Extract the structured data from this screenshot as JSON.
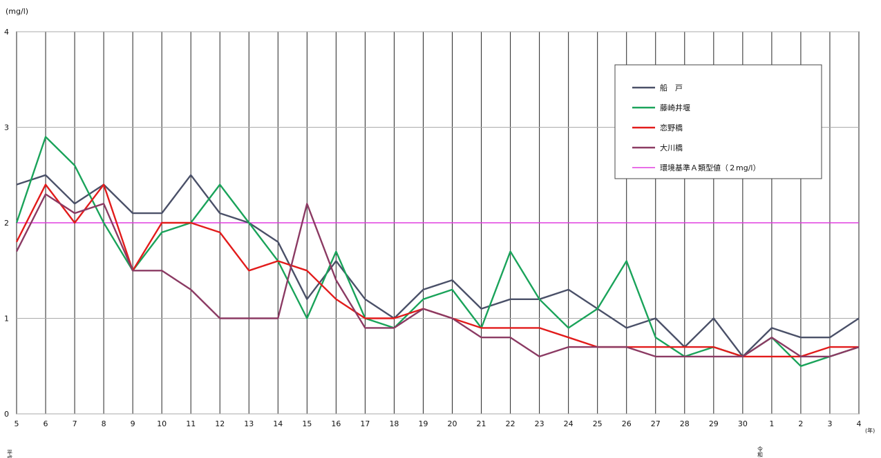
{
  "chart_data": {
    "type": "line",
    "ylabel": "(mg/l)",
    "xlabel": "(年)",
    "ylim": [
      0,
      4
    ],
    "yticks": [
      "0",
      "1",
      "2",
      "3",
      "4"
    ],
    "categories": [
      "5",
      "6",
      "7",
      "8",
      "9",
      "10",
      "11",
      "12",
      "13",
      "14",
      "15",
      "16",
      "17",
      "18",
      "19",
      "20",
      "21",
      "22",
      "23",
      "24",
      "25",
      "26",
      "27",
      "28",
      "29",
      "30",
      "1",
      "2",
      "3",
      "4"
    ],
    "era_labels": {
      "heisei": "平成",
      "reiwa": "令和"
    },
    "grid": true,
    "legend_position": "top-right",
    "series": [
      {
        "name": "船　戸",
        "color": "#4a5068",
        "values": [
          2.4,
          2.5,
          2.2,
          2.4,
          2.1,
          2.1,
          2.5,
          2.1,
          2.0,
          1.8,
          1.2,
          1.6,
          1.2,
          1.0,
          1.3,
          1.4,
          1.1,
          1.2,
          1.2,
          1.3,
          1.1,
          0.9,
          1.0,
          0.7,
          1.0,
          0.6,
          0.9,
          0.8,
          0.8,
          1.0
        ]
      },
      {
        "name": "藤崎井堰",
        "color": "#1aa35a",
        "values": [
          2.0,
          2.9,
          2.6,
          2.0,
          1.5,
          1.9,
          2.0,
          2.4,
          2.0,
          1.6,
          1.0,
          1.7,
          1.0,
          0.9,
          1.2,
          1.3,
          0.9,
          1.7,
          1.2,
          0.9,
          1.1,
          1.6,
          0.8,
          0.6,
          0.7,
          0.6,
          0.8,
          0.5,
          0.6,
          0.7
        ]
      },
      {
        "name": "恋野橋",
        "color": "#e21b1b",
        "values": [
          1.8,
          2.4,
          2.0,
          2.4,
          1.5,
          2.0,
          2.0,
          1.9,
          1.5,
          1.6,
          1.5,
          1.2,
          1.0,
          1.0,
          1.1,
          1.0,
          0.9,
          0.9,
          0.9,
          0.8,
          0.7,
          0.7,
          0.7,
          0.7,
          0.7,
          0.6,
          0.6,
          0.6,
          0.7,
          0.7
        ]
      },
      {
        "name": "大川橋",
        "color": "#8b3a63",
        "values": [
          1.7,
          2.3,
          2.1,
          2.2,
          1.5,
          1.5,
          1.3,
          1.0,
          1.0,
          1.0,
          2.2,
          1.4,
          0.9,
          0.9,
          1.1,
          1.0,
          0.8,
          0.8,
          0.6,
          0.7,
          0.7,
          0.7,
          0.6,
          0.6,
          0.6,
          0.6,
          0.8,
          0.6,
          0.6,
          0.7
        ]
      }
    ],
    "reference_lines": [
      {
        "name": "環境基準Ａ類型値（２mg/l）",
        "value": 2,
        "color": "#e03fdf"
      }
    ]
  }
}
